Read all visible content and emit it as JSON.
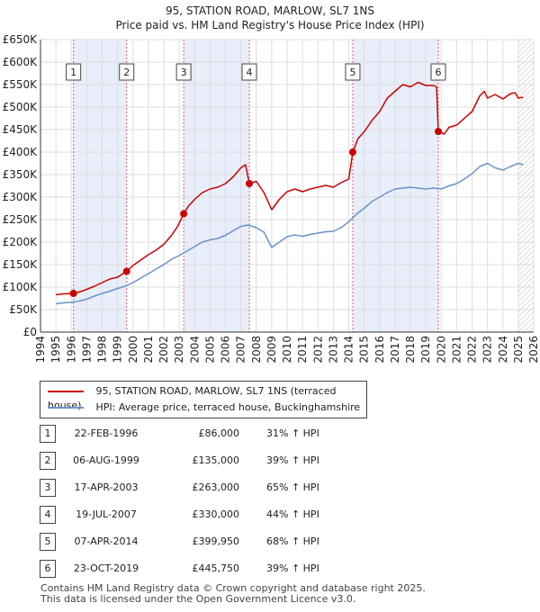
{
  "chart_data": {
    "type": "line",
    "title": "95, STATION ROAD, MARLOW, SL7 1NS",
    "subtitle": "Price paid vs. HM Land Registry's House Price Index (HPI)",
    "xlabel": "",
    "ylabel": "",
    "xlim": [
      1994,
      2026
    ],
    "ylim": [
      0,
      650000
    ],
    "y_ticks": [
      {
        "value": 0,
        "label": "£0"
      },
      {
        "value": 50000,
        "label": "£50K"
      },
      {
        "value": 100000,
        "label": "£100K"
      },
      {
        "value": 150000,
        "label": "£150K"
      },
      {
        "value": 200000,
        "label": "£200K"
      },
      {
        "value": 250000,
        "label": "£250K"
      },
      {
        "value": 300000,
        "label": "£300K"
      },
      {
        "value": 350000,
        "label": "£350K"
      },
      {
        "value": 400000,
        "label": "£400K"
      },
      {
        "value": 450000,
        "label": "£450K"
      },
      {
        "value": 500000,
        "label": "£500K"
      },
      {
        "value": 550000,
        "label": "£550K"
      },
      {
        "value": 600000,
        "label": "£600K"
      },
      {
        "value": 650000,
        "label": "£650K"
      }
    ],
    "x_ticks": [
      "1994",
      "1995",
      "1996",
      "1997",
      "1998",
      "1999",
      "2000",
      "2001",
      "2002",
      "2003",
      "2004",
      "2005",
      "2006",
      "2007",
      "2008",
      "2009",
      "2010",
      "2011",
      "2012",
      "2013",
      "2014",
      "2015",
      "2016",
      "2017",
      "2018",
      "2019",
      "2020",
      "2021",
      "2022",
      "2023",
      "2024",
      "2025",
      "2026"
    ],
    "grid": true,
    "legend_position": "below",
    "series": [
      {
        "name": "95, STATION ROAD, MARLOW, SL7 1NS (terraced house)",
        "color": "#cc0000",
        "x": [
          1995.0,
          1995.5,
          1996.14,
          1996.5,
          1997.0,
          1997.5,
          1998.0,
          1998.5,
          1999.0,
          1999.59,
          2000.0,
          2000.5,
          2001.0,
          2001.5,
          2002.0,
          2002.5,
          2002.9,
          2003.29,
          2003.6,
          2004.0,
          2004.5,
          2005.0,
          2005.5,
          2006.0,
          2006.5,
          2007.0,
          2007.3,
          2007.55,
          2008.0,
          2008.5,
          2009.0,
          2009.5,
          2010.0,
          2010.5,
          2011.0,
          2011.5,
          2012.0,
          2012.5,
          2013.0,
          2013.5,
          2014.0,
          2014.26,
          2014.6,
          2015.0,
          2015.5,
          2016.0,
          2016.5,
          2017.0,
          2017.5,
          2018.0,
          2018.5,
          2019.0,
          2019.5,
          2019.7,
          2019.81,
          2020.2,
          2020.5,
          2021.0,
          2021.5,
          2022.0,
          2022.5,
          2022.8,
          2023.0,
          2023.5,
          2024.0,
          2024.5,
          2024.8,
          2025.0,
          2025.3
        ],
        "values": [
          83000,
          85000,
          86000,
          89000,
          95000,
          102000,
          110000,
          118000,
          122000,
          135000,
          148000,
          160000,
          172000,
          182000,
          195000,
          215000,
          235000,
          263000,
          280000,
          295000,
          310000,
          318000,
          322000,
          330000,
          345000,
          365000,
          372000,
          330000,
          335000,
          310000,
          272000,
          295000,
          312000,
          318000,
          312000,
          318000,
          322000,
          326000,
          322000,
          332000,
          340000,
          399950,
          430000,
          445000,
          470000,
          490000,
          520000,
          535000,
          550000,
          545000,
          555000,
          548000,
          548000,
          545000,
          445750,
          440000,
          455000,
          460000,
          475000,
          490000,
          525000,
          535000,
          520000,
          528000,
          518000,
          530000,
          532000,
          520000,
          522000
        ]
      },
      {
        "name": "HPI: Average price, terraced house, Buckinghamshire",
        "color": "#6b93c8",
        "x": [
          1995.0,
          1995.5,
          1996.0,
          1996.5,
          1997.0,
          1997.5,
          1998.0,
          1998.5,
          1999.0,
          1999.5,
          2000.0,
          2000.5,
          2001.0,
          2001.5,
          2002.0,
          2002.5,
          2003.0,
          2003.5,
          2004.0,
          2004.5,
          2005.0,
          2005.5,
          2006.0,
          2006.5,
          2007.0,
          2007.5,
          2008.0,
          2008.5,
          2009.0,
          2009.5,
          2010.0,
          2010.5,
          2011.0,
          2011.5,
          2012.0,
          2012.5,
          2013.0,
          2013.5,
          2014.0,
          2014.5,
          2015.0,
          2015.5,
          2016.0,
          2016.5,
          2017.0,
          2017.5,
          2018.0,
          2018.5,
          2019.0,
          2019.5,
          2020.0,
          2020.5,
          2021.0,
          2021.5,
          2022.0,
          2022.5,
          2023.0,
          2023.5,
          2024.0,
          2024.5,
          2025.0,
          2025.3
        ],
        "values": [
          63000,
          65000,
          66000,
          69000,
          73000,
          80000,
          86000,
          91000,
          97000,
          102000,
          110000,
          120000,
          130000,
          140000,
          150000,
          162000,
          170000,
          180000,
          190000,
          200000,
          205000,
          208000,
          215000,
          225000,
          235000,
          238000,
          232000,
          222000,
          188000,
          200000,
          212000,
          216000,
          213000,
          217000,
          220000,
          223000,
          224000,
          232000,
          245000,
          262000,
          275000,
          290000,
          300000,
          310000,
          318000,
          320000,
          322000,
          320000,
          318000,
          320000,
          318000,
          325000,
          330000,
          340000,
          352000,
          368000,
          375000,
          365000,
          360000,
          368000,
          375000,
          372000
        ]
      }
    ],
    "sales": [
      {
        "n": "1",
        "year": 1996.14,
        "price": 86000
      },
      {
        "n": "2",
        "year": 1999.59,
        "price": 135000
      },
      {
        "n": "3",
        "year": 2003.29,
        "price": 263000
      },
      {
        "n": "4",
        "year": 2007.55,
        "price": 330000
      },
      {
        "n": "5",
        "year": 2014.26,
        "price": 399950
      },
      {
        "n": "6",
        "year": 2019.81,
        "price": 445750
      }
    ],
    "shaded_periods": [
      [
        1996.14,
        1999.59
      ],
      [
        2003.29,
        2007.55
      ],
      [
        2014.26,
        2019.81
      ]
    ],
    "hatched_after": 2025.0
  },
  "legend": {
    "property_label": "95, STATION ROAD, MARLOW, SL7 1NS (terraced house)",
    "hpi_label": "HPI: Average price, terraced house, Buckinghamshire",
    "property_color": "#cc0000",
    "hpi_color": "#6b93c8"
  },
  "transactions": [
    {
      "n": "1",
      "date": "22-FEB-1996",
      "price": "£86,000",
      "hpi": "31% ↑ HPI"
    },
    {
      "n": "2",
      "date": "06-AUG-1999",
      "price": "£135,000",
      "hpi": "39% ↑ HPI"
    },
    {
      "n": "3",
      "date": "17-APR-2003",
      "price": "£263,000",
      "hpi": "65% ↑ HPI"
    },
    {
      "n": "4",
      "date": "19-JUL-2007",
      "price": "£330,000",
      "hpi": "44% ↑ HPI"
    },
    {
      "n": "5",
      "date": "07-APR-2014",
      "price": "£399,950",
      "hpi": "68% ↑ HPI"
    },
    {
      "n": "6",
      "date": "23-OCT-2019",
      "price": "£445,750",
      "hpi": "39% ↑ HPI"
    }
  ],
  "footer": {
    "line1": "Contains HM Land Registry data © Crown copyright and database right 2025.",
    "line2": "This data is licensed under the Open Government Licence v3.0."
  }
}
